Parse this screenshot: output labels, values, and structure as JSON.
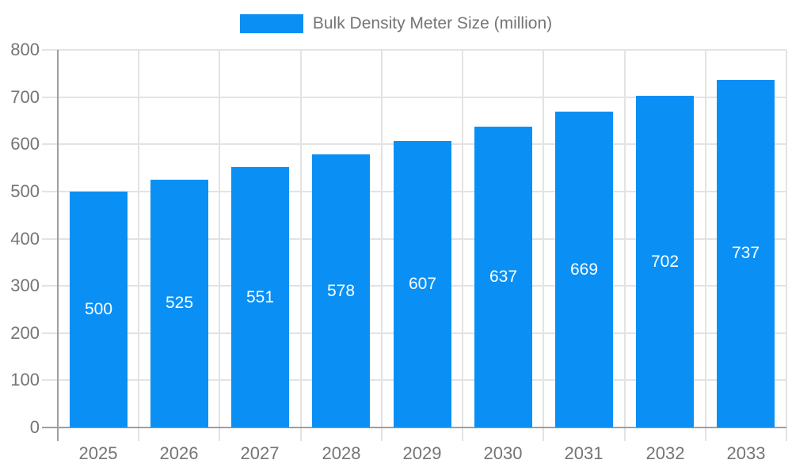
{
  "legend": {
    "label": "Bulk Density Meter Size (million)"
  },
  "colors": {
    "bar": "#0a90f5",
    "value_label": "#ffffff",
    "axis_text": "#757575",
    "axis_line": "#9e9e9e",
    "gridline": "#e3e3e3",
    "background": "#ffffff"
  },
  "chart_data": {
    "type": "bar",
    "title": "Bulk Density Meter Size (million)",
    "categories": [
      "2025",
      "2026",
      "2027",
      "2028",
      "2029",
      "2030",
      "2031",
      "2032",
      "2033"
    ],
    "values": [
      500,
      525,
      551,
      578,
      607,
      637,
      669,
      702,
      737
    ],
    "series": [
      {
        "name": "Bulk Density Meter Size (million)",
        "values": [
          500,
          525,
          551,
          578,
          607,
          637,
          669,
          702,
          737
        ]
      }
    ],
    "xlabel": "",
    "ylabel": "",
    "ylim": [
      0,
      800
    ],
    "ytick_step": 100,
    "yticks": [
      0,
      100,
      200,
      300,
      400,
      500,
      600,
      700,
      800
    ],
    "grid": true,
    "legend_position": "top",
    "value_labels_shown": true,
    "value_label_position": "center-of-bar"
  }
}
